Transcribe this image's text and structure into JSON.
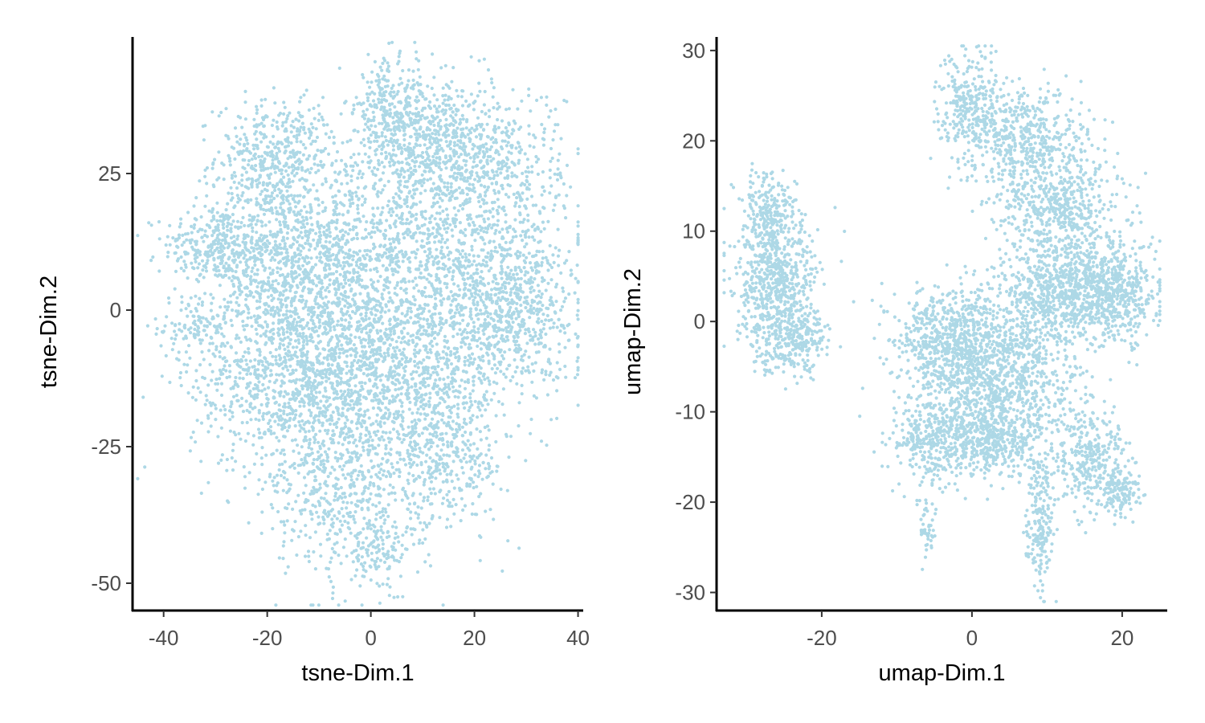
{
  "chart_data": [
    {
      "type": "scatter",
      "title": "",
      "xlabel": "tsne-Dim.1",
      "ylabel": "tsne-Dim.2",
      "xlim": [
        -46,
        41
      ],
      "ylim": [
        -55,
        50
      ],
      "xticks": [
        -40,
        -20,
        0,
        20,
        40
      ],
      "xtick_labels": [
        "-40",
        "-20",
        "0",
        "20",
        "40"
      ],
      "yticks": [
        -50,
        -25,
        0,
        25
      ],
      "ytick_labels": [
        "-50",
        "-25",
        "0",
        "25"
      ],
      "grid": false,
      "legend": "none",
      "point_color": "#add8e6",
      "clusters": [
        {
          "cx": -30,
          "cy": 12,
          "sx": 5,
          "sy": 3.5,
          "n": 260
        },
        {
          "cx": -33,
          "cy": -3,
          "sx": 4,
          "sy": 3,
          "n": 110
        },
        {
          "cx": -18,
          "cy": 28,
          "sx": 6,
          "sy": 5,
          "n": 420
        },
        {
          "cx": -20,
          "cy": 10,
          "sx": 6,
          "sy": 8,
          "n": 420
        },
        {
          "cx": -17,
          "cy": -14,
          "sx": 9,
          "sy": 8,
          "n": 700
        },
        {
          "cx": -10,
          "cy": 5,
          "sx": 10,
          "sy": 10,
          "n": 800
        },
        {
          "cx": 3,
          "cy": 36,
          "sx": 3,
          "sy": 5,
          "n": 220
        },
        {
          "cx": 10,
          "cy": 32,
          "sx": 5,
          "sy": 5,
          "n": 380
        },
        {
          "cx": 23,
          "cy": 27,
          "sx": 7,
          "sy": 7,
          "n": 480
        },
        {
          "cx": 10,
          "cy": 10,
          "sx": 13,
          "sy": 11,
          "n": 1300
        },
        {
          "cx": 27,
          "cy": 0,
          "sx": 6,
          "sy": 7,
          "n": 560
        },
        {
          "cx": 5,
          "cy": -10,
          "sx": 11,
          "sy": 7,
          "n": 800
        },
        {
          "cx": -5,
          "cy": -30,
          "sx": 7,
          "sy": 10,
          "n": 700
        },
        {
          "cx": 14,
          "cy": -26,
          "sx": 6,
          "sy": 7,
          "n": 450
        },
        {
          "cx": 2,
          "cy": -45,
          "sx": 3,
          "sy": 3,
          "n": 90
        }
      ]
    },
    {
      "type": "scatter",
      "title": "",
      "xlabel": "umap-Dim.1",
      "ylabel": "umap-Dim.2",
      "xlim": [
        -34,
        26
      ],
      "ylim": [
        -32,
        31.5
      ],
      "xticks": [
        -20,
        0,
        20
      ],
      "xtick_labels": [
        "-20",
        "0",
        "20"
      ],
      "yticks": [
        -30,
        -20,
        -10,
        0,
        10,
        20,
        30
      ],
      "ytick_labels": [
        "-30",
        "-20",
        "-10",
        "0",
        "10",
        "20",
        "30"
      ],
      "grid": false,
      "legend": "none",
      "point_color": "#add8e6",
      "clusters": [
        {
          "cx": -27,
          "cy": 12,
          "sx": 1.8,
          "sy": 2.5,
          "n": 220
        },
        {
          "cx": -26,
          "cy": 4,
          "sx": 2.8,
          "sy": 3.5,
          "n": 600
        },
        {
          "cx": -24,
          "cy": -2,
          "sx": 2.5,
          "sy": 1.8,
          "n": 260
        },
        {
          "cx": 0,
          "cy": 24,
          "sx": 2.2,
          "sy": 3,
          "n": 280
        },
        {
          "cx": 7,
          "cy": 20,
          "sx": 4,
          "sy": 3,
          "n": 460
        },
        {
          "cx": 12,
          "cy": 12,
          "sx": 4,
          "sy": 4,
          "n": 620
        },
        {
          "cx": 13,
          "cy": 3,
          "sx": 5,
          "sy": 2.5,
          "n": 700
        },
        {
          "cx": 19,
          "cy": 3,
          "sx": 2.5,
          "sy": 2.5,
          "n": 360
        },
        {
          "cx": -3,
          "cy": -2,
          "sx": 3.5,
          "sy": 3,
          "n": 600
        },
        {
          "cx": 4,
          "cy": -6,
          "sx": 5,
          "sy": 4,
          "n": 900
        },
        {
          "cx": -5,
          "cy": -13,
          "sx": 2.8,
          "sy": 2.5,
          "n": 380
        },
        {
          "cx": 3,
          "cy": -13,
          "sx": 3.5,
          "sy": 2,
          "n": 420
        },
        {
          "cx": 16,
          "cy": -15,
          "sx": 2.5,
          "sy": 3,
          "n": 320
        },
        {
          "cx": 20,
          "cy": -19,
          "sx": 1.4,
          "sy": 1.2,
          "n": 120
        },
        {
          "cx": 9,
          "cy": -22,
          "sx": 0.9,
          "sy": 3.5,
          "n": 200
        },
        {
          "cx": -6,
          "cy": -23,
          "sx": 0.7,
          "sy": 1.5,
          "n": 45
        }
      ]
    }
  ]
}
